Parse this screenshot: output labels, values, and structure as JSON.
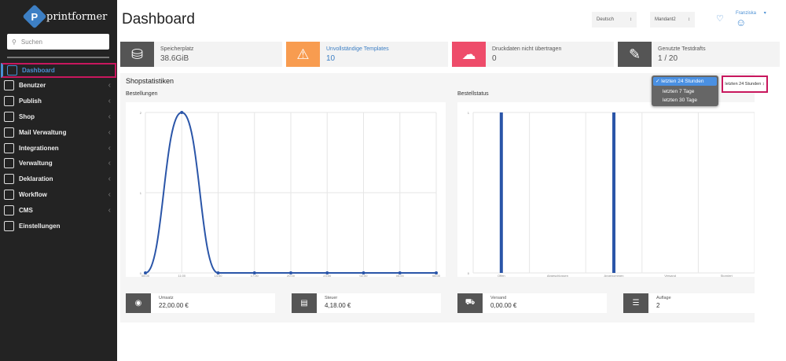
{
  "brand": {
    "name": "printformer"
  },
  "search": {
    "placeholder": "Suchen"
  },
  "sidebar": {
    "items": [
      {
        "label": "Dashboard",
        "active": true,
        "chevron": false
      },
      {
        "label": "Benutzer",
        "chevron": true
      },
      {
        "label": "Publish",
        "chevron": true
      },
      {
        "label": "Shop",
        "chevron": true
      },
      {
        "label": "Mail Verwaltung",
        "chevron": true
      },
      {
        "label": "Integrationen",
        "chevron": true
      },
      {
        "label": "Verwaltung",
        "chevron": true
      },
      {
        "label": "Deklaration",
        "chevron": true
      },
      {
        "label": "Workflow",
        "chevron": true
      },
      {
        "label": "CMS",
        "chevron": true
      },
      {
        "label": "Einstellungen",
        "chevron": false
      }
    ]
  },
  "header": {
    "title": "Dashboard",
    "language": "Deutsch",
    "tenant": "Mandant2",
    "user": "Franziska"
  },
  "cards": [
    {
      "label": "Speicherplatz",
      "value": "38.6GiB",
      "color": "#555555",
      "icon": "database-icon"
    },
    {
      "label": "Unvollständige Templates",
      "value": "10",
      "color": "#f89c50",
      "icon": "warning-icon"
    },
    {
      "label": "Druckdaten nicht übertragen",
      "value": "0",
      "color": "#ee4c6a",
      "icon": "cloud-error-icon"
    },
    {
      "label": "Genutzte Testdrafts",
      "value": "1 / 20",
      "color": "#555555",
      "icon": "edit-icon"
    }
  ],
  "stats": {
    "title": "Shopstatistiken",
    "range_selected": "letzten 24 Stunden",
    "range_options": [
      "letzten 24 Stunden",
      "letzten 7 Tage",
      "letzten 30 Tage"
    ]
  },
  "chart_data": [
    {
      "type": "line",
      "title": "Bestellungen",
      "x": [
        "08:00",
        "11:00",
        "14:00",
        "17:00",
        "20:00",
        "23:00",
        "02:00",
        "05:00",
        "08:00"
      ],
      "values": [
        0,
        2,
        0,
        0,
        0,
        0,
        0,
        0,
        0
      ],
      "ylim": [
        0,
        2
      ],
      "yticks": [
        0,
        1,
        2
      ],
      "grid": true,
      "color": "#2a55a8"
    },
    {
      "type": "bar",
      "title": "Bestellstatus",
      "categories": [
        "Offen",
        "Abgeschlossen",
        "Angenommen",
        "Versand",
        "Storniert"
      ],
      "values": [
        1,
        0,
        1,
        0,
        0
      ],
      "ylim": [
        0,
        1
      ],
      "yticks": [
        0,
        1
      ],
      "grid": true,
      "color": "#2a55a8"
    }
  ],
  "kpis": [
    {
      "label": "Umsatz",
      "value": "22,00.00 €",
      "icon": "coins-icon"
    },
    {
      "label": "Steuer",
      "value": "4,18.00 €",
      "icon": "tax-icon"
    },
    {
      "label": "Versand",
      "value": "0,00.00 €",
      "icon": "truck-icon"
    },
    {
      "label": "Auflage",
      "value": "2",
      "icon": "stack-icon"
    }
  ]
}
